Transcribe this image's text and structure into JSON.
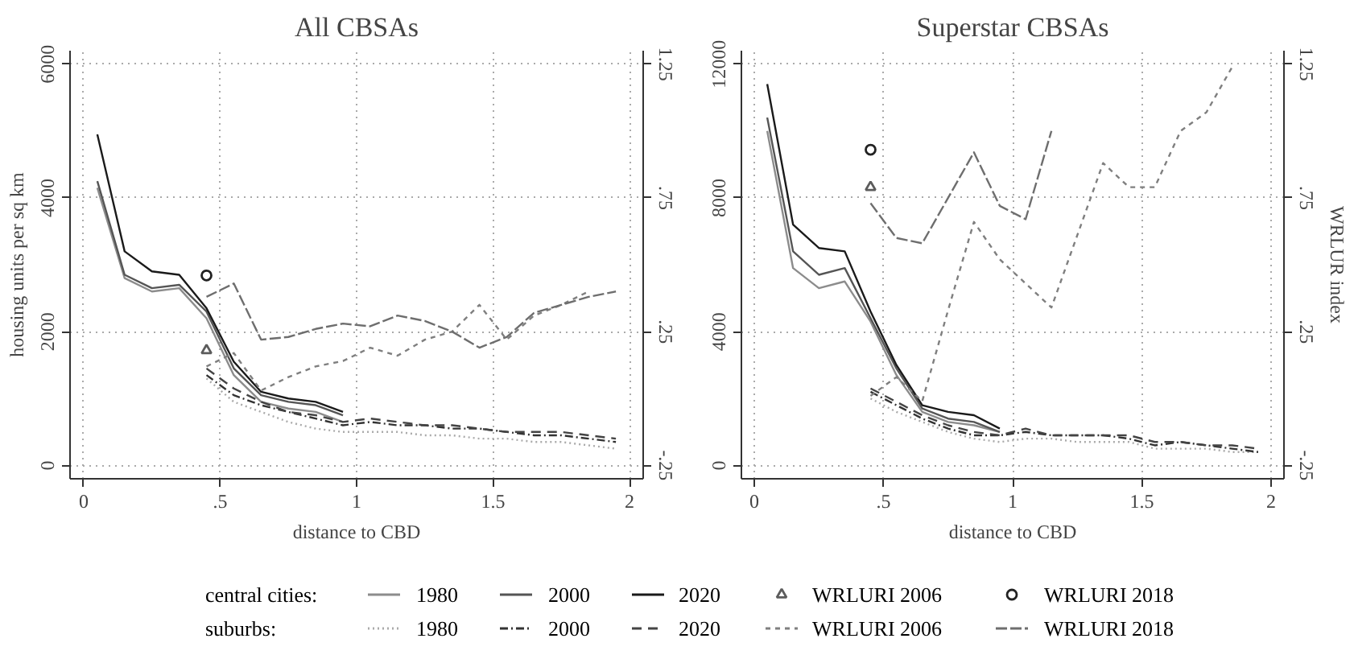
{
  "chart_data": [
    {
      "type": "line",
      "title": "All CBSAs",
      "xlabel": "distance to CBD",
      "ylabel": "housing units per sq km",
      "xlim": [
        -0.05,
        2.05
      ],
      "ylim": [
        -200,
        6200
      ],
      "y2lim": [
        -0.3,
        1.3
      ],
      "xticks": [
        0,
        {
          "value": 0.5,
          "label": ".5"
        },
        1,
        1.5,
        2
      ],
      "yticks": [
        0,
        2000,
        4000,
        6000
      ],
      "y2ticks": [
        {
          "value": -0.25,
          "label": "-.25"
        },
        {
          "value": 0.25,
          "label": ".25"
        },
        {
          "value": 0.75,
          "label": ".75"
        },
        1.25
      ],
      "grid": true,
      "legend": "bottom",
      "annotations": [
        "central cities:",
        "suburbs:"
      ],
      "series": [
        {
          "name": "1980",
          "color": "#8c8c8c",
          "line_style": "solid",
          "x": [
            0.05,
            0.15,
            0.25,
            0.35,
            0.45,
            0.55,
            0.65,
            0.75,
            0.85,
            0.95
          ],
          "values": [
            4150,
            2800,
            2600,
            2650,
            2200,
            1350,
            950,
            850,
            800,
            650
          ]
        },
        {
          "name": "2000",
          "color": "#555555",
          "line_style": "solid",
          "x": [
            0.05,
            0.15,
            0.25,
            0.35,
            0.45,
            0.55,
            0.65,
            0.75,
            0.85,
            0.95
          ],
          "values": [
            4250,
            2850,
            2650,
            2700,
            2300,
            1450,
            1050,
            950,
            900,
            750
          ]
        },
        {
          "name": "2020",
          "color": "#1a1a1a",
          "line_style": "solid",
          "x": [
            0.05,
            0.15,
            0.25,
            0.35,
            0.45,
            0.55,
            0.65,
            0.75,
            0.85,
            0.95
          ],
          "values": [
            4950,
            3200,
            2900,
            2850,
            2350,
            1550,
            1100,
            1000,
            950,
            800
          ]
        },
        {
          "name": "WRLURI 2006",
          "type": "scatter",
          "marker": "triangle",
          "axis": "y2",
          "color": "#5c5c5c",
          "x": [
            0.45
          ],
          "values": [
            0.18
          ]
        },
        {
          "name": "WRLURI 2018",
          "type": "scatter",
          "marker": "circle",
          "axis": "y2",
          "color": "#222222",
          "x": [
            0.45
          ],
          "values": [
            0.46
          ]
        },
        {
          "name": "1980",
          "color": "#aaaaaa",
          "line_style": "dotted",
          "x": [
            0.45,
            0.55,
            0.65,
            0.75,
            0.85,
            0.95,
            1.05,
            1.15,
            1.25,
            1.35,
            1.45,
            1.55,
            1.65,
            1.75,
            1.85,
            1.95
          ],
          "values": [
            1300,
            950,
            800,
            650,
            550,
            500,
            500,
            500,
            450,
            450,
            400,
            400,
            350,
            350,
            300,
            250
          ]
        },
        {
          "name": "2000",
          "color": "#333333",
          "line_style": "dashdot",
          "x": [
            0.45,
            0.55,
            0.65,
            0.75,
            0.85,
            0.95,
            1.05,
            1.15,
            1.25,
            1.35,
            1.45,
            1.55,
            1.65,
            1.75,
            1.85,
            1.95
          ],
          "values": [
            1350,
            1050,
            900,
            800,
            700,
            600,
            650,
            600,
            600,
            550,
            550,
            500,
            450,
            450,
            400,
            350
          ]
        },
        {
          "name": "2020",
          "color": "#444444",
          "line_style": "dashed",
          "x": [
            0.45,
            0.55,
            0.65,
            0.75,
            0.85,
            0.95,
            1.05,
            1.15,
            1.25,
            1.35,
            1.45,
            1.55,
            1.65,
            1.75,
            1.85,
            1.95
          ],
          "values": [
            1450,
            1150,
            950,
            800,
            750,
            650,
            700,
            650,
            600,
            600,
            550,
            500,
            500,
            500,
            450,
            400
          ]
        },
        {
          "name": "WRLURI 2006",
          "axis": "y2",
          "color": "#7f7f7f",
          "line_style": "shortdash",
          "x": [
            0.45,
            0.55,
            0.65,
            0.75,
            0.85,
            0.95,
            1.05,
            1.15,
            1.25,
            1.35,
            1.45,
            1.55,
            1.65,
            1.75,
            1.85
          ],
          "values": [
            0.12,
            0.17,
            0.03,
            0.08,
            0.12,
            0.14,
            0.19,
            0.16,
            0.22,
            0.25,
            0.35,
            0.22,
            0.31,
            0.35,
            0.4
          ]
        },
        {
          "name": "WRLURI 2018",
          "axis": "y2",
          "color": "#6e6e6e",
          "line_style": "longdash",
          "x": [
            0.45,
            0.55,
            0.65,
            0.75,
            0.85,
            0.95,
            1.05,
            1.15,
            1.25,
            1.35,
            1.45,
            1.55,
            1.65,
            1.75,
            1.85,
            1.95
          ],
          "values": [
            0.38,
            0.43,
            0.22,
            0.23,
            0.26,
            0.28,
            0.27,
            0.31,
            0.29,
            0.25,
            0.19,
            0.23,
            0.32,
            0.35,
            0.38,
            0.4
          ]
        }
      ]
    },
    {
      "type": "line",
      "title": "Superstar CBSAs",
      "xlabel": "distance to CBD",
      "y2label": "WRLUR index",
      "xlim": [
        -0.05,
        2.05
      ],
      "ylim": [
        -400,
        12400
      ],
      "y2lim": [
        -0.3,
        1.3
      ],
      "xticks": [
        0,
        {
          "value": 0.5,
          "label": ".5"
        },
        1,
        1.5,
        2
      ],
      "yticks": [
        0,
        4000,
        8000,
        12000
      ],
      "y2ticks": [
        {
          "value": -0.25,
          "label": "-.25"
        },
        {
          "value": 0.25,
          "label": ".25"
        },
        {
          "value": 0.75,
          "label": ".75"
        },
        1.25
      ],
      "grid": true,
      "series": [
        {
          "color": "#8c8c8c",
          "line_style": "solid",
          "x": [
            0.05,
            0.15,
            0.25,
            0.35,
            0.45,
            0.55,
            0.65,
            0.75,
            0.85,
            0.95
          ],
          "values": [
            10000,
            5900,
            5300,
            5500,
            4300,
            2700,
            1600,
            1300,
            1200,
            1000
          ]
        },
        {
          "color": "#555555",
          "line_style": "solid",
          "x": [
            0.05,
            0.15,
            0.25,
            0.35,
            0.45,
            0.55,
            0.65,
            0.75,
            0.85,
            0.95
          ],
          "values": [
            10400,
            6400,
            5700,
            5900,
            4400,
            2900,
            1700,
            1400,
            1300,
            1000
          ]
        },
        {
          "color": "#1a1a1a",
          "line_style": "solid",
          "x": [
            0.05,
            0.15,
            0.25,
            0.35,
            0.45,
            0.55,
            0.65,
            0.75,
            0.85,
            0.95
          ],
          "values": [
            11400,
            7200,
            6500,
            6400,
            4600,
            3000,
            1800,
            1600,
            1500,
            1100
          ]
        },
        {
          "type": "scatter",
          "marker": "triangle",
          "axis": "y2",
          "color": "#5c5c5c",
          "x": [
            0.45
          ],
          "values": [
            0.79
          ]
        },
        {
          "type": "scatter",
          "marker": "circle",
          "axis": "y2",
          "color": "#222222",
          "x": [
            0.45
          ],
          "values": [
            0.93
          ]
        },
        {
          "color": "#aaaaaa",
          "line_style": "dotted",
          "x": [
            0.45,
            0.55,
            0.65,
            0.75,
            0.85,
            0.95,
            1.05,
            1.15,
            1.25,
            1.35,
            1.45,
            1.55,
            1.65,
            1.75,
            1.85,
            1.95
          ],
          "values": [
            2000,
            1600,
            1300,
            1000,
            800,
            700,
            800,
            800,
            700,
            700,
            700,
            500,
            500,
            500,
            400,
            400
          ]
        },
        {
          "color": "#333333",
          "line_style": "dashdot",
          "x": [
            0.45,
            0.55,
            0.65,
            0.75,
            0.85,
            0.95,
            1.05,
            1.15,
            1.25,
            1.35,
            1.45,
            1.55,
            1.65,
            1.75,
            1.85,
            1.95
          ],
          "values": [
            2200,
            1800,
            1400,
            1100,
            900,
            900,
            1000,
            900,
            900,
            900,
            800,
            600,
            700,
            600,
            500,
            400
          ]
        },
        {
          "color": "#444444",
          "line_style": "dashed",
          "x": [
            0.45,
            0.55,
            0.65,
            0.75,
            0.85,
            0.95,
            1.05,
            1.15,
            1.25,
            1.35,
            1.45,
            1.55,
            1.65,
            1.75,
            1.85,
            1.95
          ],
          "values": [
            2300,
            1900,
            1500,
            1200,
            1000,
            900,
            1100,
            900,
            900,
            900,
            900,
            700,
            700,
            600,
            600,
            500
          ]
        },
        {
          "axis": "y2",
          "color": "#7f7f7f",
          "line_style": "shortdash",
          "x": [
            0.45,
            0.55,
            0.65,
            0.75,
            0.85,
            0.95,
            1.05,
            1.15,
            1.25,
            1.35,
            1.45,
            1.55,
            1.65,
            1.75,
            1.85
          ],
          "values": [
            0.01,
            0.08,
            -0.01,
            0.33,
            0.66,
            0.52,
            0.43,
            0.34,
            0.61,
            0.88,
            0.79,
            0.79,
            1.0,
            1.07,
            1.24
          ]
        },
        {
          "axis": "y2",
          "color": "#6e6e6e",
          "line_style": "longdash",
          "x": [
            0.45,
            0.55,
            0.65,
            0.75,
            0.85,
            0.95,
            1.05,
            1.15
          ],
          "values": [
            0.73,
            0.6,
            0.58,
            0.75,
            0.92,
            0.72,
            0.67,
            1.0
          ]
        }
      ]
    }
  ]
}
